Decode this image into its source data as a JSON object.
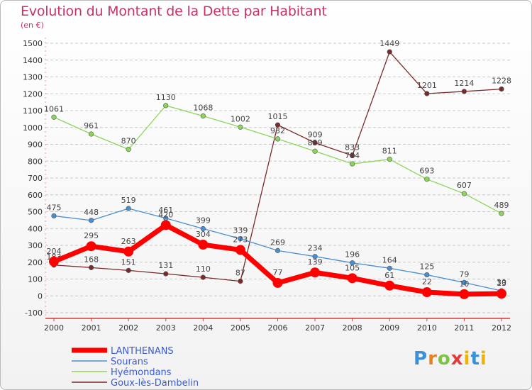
{
  "header": {
    "title": "Evolution du Montant de la Dette par Habitant",
    "unit": "(en €)"
  },
  "logo": {
    "p": "P",
    "r": "r",
    "o": "o",
    "x": "x",
    "i": "i",
    "t": "t",
    "i2": "i"
  },
  "chart_data": {
    "type": "line",
    "title": "Evolution du Montant de la Dette par Habitant",
    "ylabel": "(en €)",
    "xlabel": "",
    "x": [
      2000,
      2001,
      2002,
      2003,
      2004,
      2005,
      2006,
      2007,
      2008,
      2009,
      2010,
      2011,
      2012
    ],
    "ylim": [
      -100,
      1500
    ],
    "yticks": [
      -100,
      0,
      100,
      200,
      300,
      400,
      500,
      600,
      700,
      800,
      900,
      1000,
      1100,
      1200,
      1300,
      1400,
      1500
    ],
    "grid": "horizontal dashed",
    "legend": "bottom-left",
    "series": [
      {
        "name": "LANTHENANS",
        "color": "#ff0000",
        "values": [
          204,
          295,
          263,
          420,
          304,
          273,
          77,
          139,
          105,
          61,
          22,
          10,
          13
        ]
      },
      {
        "name": "Sourans",
        "color": "#4a90d0",
        "values": [
          475,
          448,
          519,
          461,
          399,
          339,
          269,
          234,
          196,
          164,
          125,
          79,
          30
        ]
      },
      {
        "name": "Hyémondans",
        "color": "#8cd55a",
        "values": [
          1061,
          961,
          870,
          1130,
          1068,
          1002,
          932,
          859,
          784,
          811,
          693,
          607,
          489
        ]
      },
      {
        "name": "Goux-lès-Dambelin",
        "color": "#7a2a2a",
        "values": [
          183,
          168,
          151,
          131,
          110,
          87,
          1015,
          909,
          833,
          1449,
          1201,
          1214,
          1228
        ]
      }
    ]
  }
}
